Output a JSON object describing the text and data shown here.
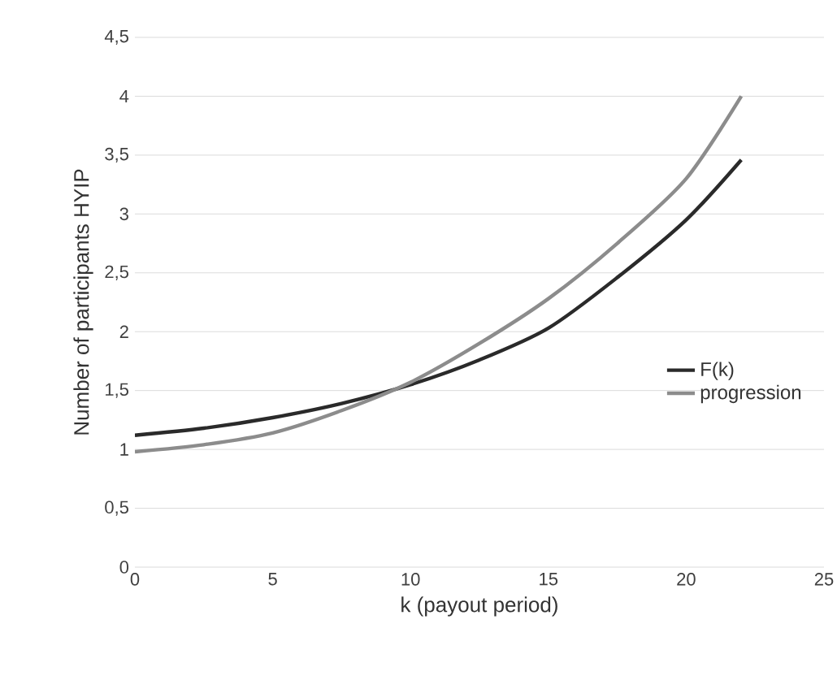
{
  "chart_data": {
    "type": "line",
    "xlabel": "k  (payout period)",
    "ylabel": "Number of participants HYIP",
    "x": [
      0,
      2.5,
      5,
      7.5,
      10,
      12.5,
      15,
      17.5,
      20,
      22
    ],
    "series": [
      {
        "name": "F(k)",
        "color": "#2a2a2a",
        "values": [
          1.12,
          1.18,
          1.27,
          1.39,
          1.55,
          1.76,
          2.03,
          2.46,
          2.95,
          3.46
        ]
      },
      {
        "name": "progression",
        "color": "#8c8c8c",
        "values": [
          0.98,
          1.04,
          1.14,
          1.33,
          1.57,
          1.9,
          2.28,
          2.75,
          3.3,
          4.0
        ]
      }
    ],
    "xlim": [
      0,
      25
    ],
    "xticks": [
      0,
      5,
      10,
      15,
      20,
      25
    ],
    "ylim": [
      0,
      4.5
    ],
    "yticks": [
      0,
      {
        "value": 0.5,
        "label": "0,5"
      },
      1,
      {
        "value": 1.5,
        "label": "1,5"
      },
      2,
      {
        "value": 2.5,
        "label": "2,5"
      },
      3,
      {
        "value": 3.5,
        "label": "3,5"
      },
      4,
      {
        "value": 4.5,
        "label": "4,5"
      }
    ],
    "grid": "y",
    "legend": "right",
    "marker": "none",
    "line_style": "solid"
  }
}
